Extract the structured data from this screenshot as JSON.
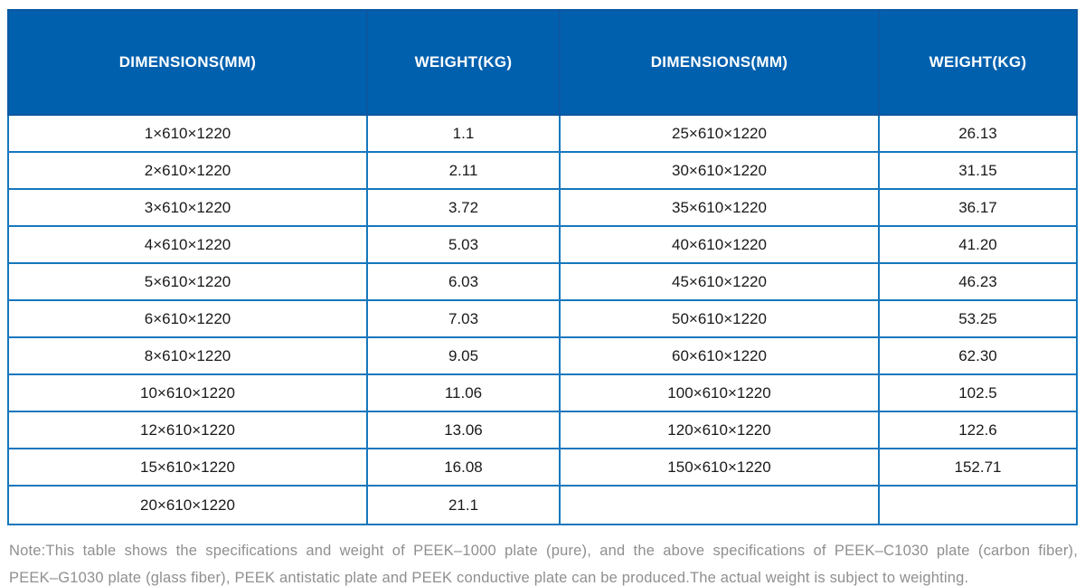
{
  "colors": {
    "header_bg": "#0060AE",
    "header_divider": "#0D57A0",
    "body_border": "#1577BD",
    "header_text": "#FFFFFF",
    "body_text": "#1A1A1A",
    "note_text": "#8F8F8F"
  },
  "table": {
    "headers": [
      "DIMENSIONS(MM)",
      "WEIGHT(KG)",
      "DIMENSIONS(MM)",
      "WEIGHT(KG)"
    ],
    "rows": [
      [
        "1×610×1220",
        "1.1",
        "25×610×1220",
        "26.13"
      ],
      [
        "2×610×1220",
        "2.11",
        "30×610×1220",
        "31.15"
      ],
      [
        "3×610×1220",
        "3.72",
        "35×610×1220",
        "36.17"
      ],
      [
        "4×610×1220",
        "5.03",
        "40×610×1220",
        "41.20"
      ],
      [
        "5×610×1220",
        "6.03",
        "45×610×1220",
        "46.23"
      ],
      [
        "6×610×1220",
        "7.03",
        "50×610×1220",
        "53.25"
      ],
      [
        "8×610×1220",
        "9.05",
        "60×610×1220",
        "62.30"
      ],
      [
        "10×610×1220",
        "11.06",
        "100×610×1220",
        "102.5"
      ],
      [
        "12×610×1220",
        "13.06",
        "120×610×1220",
        "122.6"
      ],
      [
        "15×610×1220",
        "16.08",
        "150×610×1220",
        "152.71"
      ],
      [
        "20×610×1220",
        "21.1",
        "",
        ""
      ]
    ]
  },
  "note": {
    "lines": [
      "Note:This table shows the specifications and weight of PEEK–1000 plate (pure), and the above specifications of PEEK–C1030 plate (carbon fiber),",
      "PEEK–G1030 plate (glass fiber), PEEK antistatic plate and PEEK conductive plate can be produced.The actual weight is subject to weighting."
    ]
  }
}
